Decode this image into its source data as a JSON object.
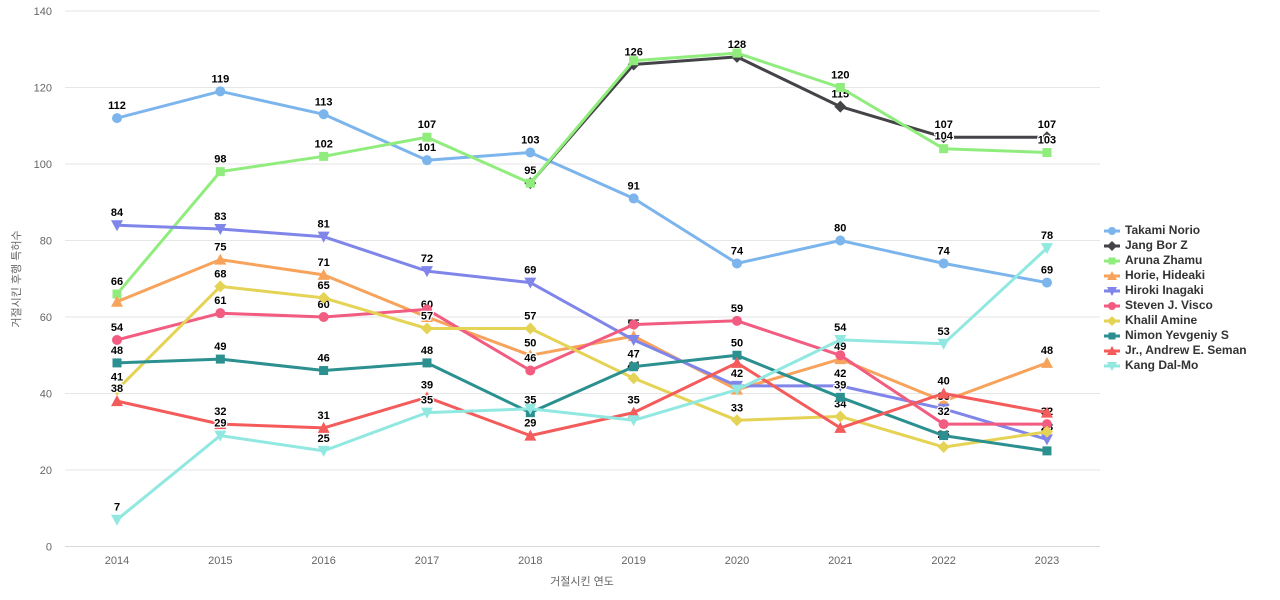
{
  "chart": {
    "y_ticks": [
      0,
      20,
      40,
      60,
      80,
      100,
      120,
      140
    ],
    "x_ticks": [
      "2014",
      "2015",
      "2016",
      "2017",
      "2018",
      "2019",
      "2020",
      "2021",
      "2022",
      "2023"
    ]
  },
  "chart_data": {
    "type": "line",
    "title": "",
    "xlabel": "거절시킨 연도",
    "ylabel": "거절시킨 후행 특허수",
    "x": [
      2014,
      2015,
      2016,
      2017,
      2018,
      2019,
      2020,
      2021,
      2022,
      2023
    ],
    "ylim": [
      0,
      140
    ],
    "grid": true,
    "legend_position": "right",
    "series": [
      {
        "name": "Takami Norio",
        "color": "#7cb5ec",
        "marker": "circle",
        "values": [
          112,
          119,
          113,
          101,
          103,
          91,
          74,
          80,
          74,
          69
        ],
        "labels": [
          112,
          119,
          113,
          101,
          103,
          91,
          74,
          80,
          74,
          69
        ]
      },
      {
        "name": "Jang Bor Z",
        "color": "#434348",
        "marker": "diamond",
        "values": [
          null,
          null,
          null,
          null,
          95,
          126,
          128,
          115,
          107,
          107
        ],
        "labels": [
          null,
          null,
          null,
          null,
          null,
          126,
          128,
          115,
          107,
          107
        ]
      },
      {
        "name": "Aruna Zhamu",
        "color": "#90ed7d",
        "marker": "square",
        "values": [
          66,
          98,
          102,
          107,
          95,
          127,
          129,
          120,
          104,
          103
        ],
        "labels": [
          66,
          98,
          102,
          107,
          95,
          null,
          null,
          120,
          104,
          103
        ]
      },
      {
        "name": "Horie, Hideaki",
        "color": "#f7a35c",
        "marker": "triangle",
        "values": [
          64,
          75,
          71,
          60,
          50,
          55,
          41,
          49,
          38,
          48
        ],
        "labels": [
          null,
          75,
          71,
          60,
          50,
          55,
          null,
          49,
          null,
          48
        ]
      },
      {
        "name": "Hiroki Inagaki",
        "color": "#8085e9",
        "marker": "triangle-down",
        "values": [
          84,
          83,
          81,
          72,
          69,
          54,
          42,
          42,
          36,
          28
        ],
        "labels": [
          84,
          83,
          81,
          72,
          69,
          null,
          42,
          42,
          36,
          28
        ]
      },
      {
        "name": "Steven J. Visco",
        "color": "#f15c80",
        "marker": "circle",
        "values": [
          54,
          61,
          60,
          62,
          46,
          58,
          59,
          50,
          32,
          32
        ],
        "labels": [
          54,
          61,
          60,
          null,
          46,
          null,
          59,
          null,
          32,
          32
        ]
      },
      {
        "name": "Khalil Amine",
        "color": "#e4d354",
        "marker": "diamond",
        "values": [
          41,
          68,
          65,
          57,
          57,
          44,
          33,
          34,
          26,
          30
        ],
        "labels": [
          41,
          68,
          65,
          57,
          57,
          44,
          33,
          34,
          26,
          null
        ]
      },
      {
        "name": "Nimon Yevgeniy S",
        "color": "#2b908f",
        "marker": "square",
        "values": [
          48,
          49,
          46,
          48,
          35,
          47,
          50,
          39,
          29,
          25
        ],
        "labels": [
          48,
          49,
          46,
          48,
          35,
          47,
          50,
          39,
          null,
          null
        ]
      },
      {
        "name": "Jr., Andrew E. Seman",
        "color": "#f45b5b",
        "marker": "triangle",
        "values": [
          38,
          32,
          31,
          39,
          29,
          35,
          48,
          31,
          40,
          35
        ],
        "labels": [
          38,
          32,
          31,
          39,
          29,
          35,
          null,
          null,
          40,
          null
        ]
      },
      {
        "name": "Kang Dal-Mo",
        "color": "#91e8e1",
        "marker": "triangle-down",
        "values": [
          7,
          29,
          25,
          35,
          36,
          33,
          41,
          54,
          53,
          78
        ],
        "labels": [
          7,
          29,
          25,
          35,
          null,
          null,
          null,
          54,
          53,
          78
        ]
      }
    ]
  }
}
